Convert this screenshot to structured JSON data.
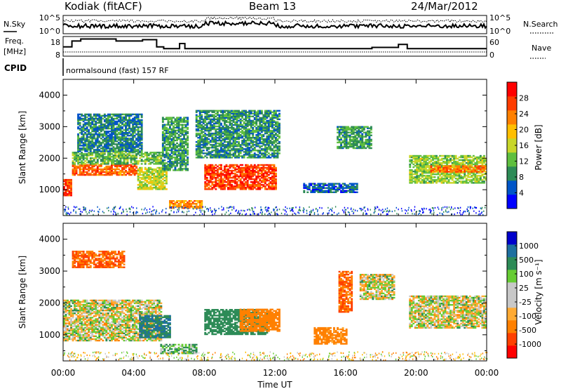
{
  "header": {
    "station": "Kodiak (fitACF)",
    "beam": "Beam 13",
    "date": "24/Mar/2012"
  },
  "noise_panel": {
    "left_label": "N.Sky",
    "right_label": "N.Search",
    "left_ticks": [
      "10^5",
      "10^0"
    ],
    "right_ticks": [
      "10^5",
      "10^0"
    ]
  },
  "freq_panel": {
    "left_label_line1": "Freq.",
    "left_label_line2": "[MHz]",
    "right_label": "Nave",
    "left_ticks": [
      "18",
      "8"
    ],
    "right_ticks": [
      "60",
      "0"
    ],
    "freq_steps": [
      {
        "t": 0.0,
        "v": 13.5
      },
      {
        "t": 0.5,
        "v": 17
      },
      {
        "t": 1.0,
        "v": 18.2
      },
      {
        "t": 3.0,
        "v": 17
      },
      {
        "t": 4.5,
        "v": 17.8
      },
      {
        "t": 5.3,
        "v": 13.5
      },
      {
        "t": 5.7,
        "v": 12.5
      },
      {
        "t": 6.2,
        "v": 12.5
      },
      {
        "t": 6.6,
        "v": 15.5
      },
      {
        "t": 6.9,
        "v": 12.5
      },
      {
        "t": 7.6,
        "v": 12.5
      },
      {
        "t": 8.8,
        "v": 12.5
      },
      {
        "t": 11.2,
        "v": 12.5
      },
      {
        "t": 12.8,
        "v": 12.5
      },
      {
        "t": 14.5,
        "v": 12.5
      },
      {
        "t": 17.5,
        "v": 13.2
      },
      {
        "t": 19.0,
        "v": 15.0
      },
      {
        "t": 19.5,
        "v": 12.5
      },
      {
        "t": 24.0,
        "v": 12.5
      }
    ]
  },
  "cpid_panel": {
    "label": "CPID",
    "program": "normalsound (fast) 157 RF"
  },
  "power_panel": {
    "ylabel": "Slant Range [km]",
    "colorbar_label": "Power [dB]",
    "colorbar_ticks": [
      "28",
      "24",
      "20",
      "16",
      "12",
      "8",
      "4"
    ]
  },
  "velocity_panel": {
    "ylabel": "Slant Range [km]",
    "colorbar_label": "Velocity [m s⁻¹]",
    "colorbar_ticks": [
      "1000",
      "500",
      "100",
      "25",
      "-25",
      "-100",
      "-500",
      "-1000"
    ]
  },
  "xaxis": {
    "label": "Time UT",
    "ticks": [
      "00:00",
      "04:00",
      "08:00",
      "12:00",
      "16:00",
      "20:00",
      "00:00"
    ]
  },
  "colors": {
    "power_scale": [
      "#0000ff",
      "#0055c8",
      "#2d8b57",
      "#5fbf3f",
      "#c8d62a",
      "#ffbf00",
      "#ff8000",
      "#ff3c00",
      "#ff0000"
    ],
    "velocity_scale": [
      "#ff0000",
      "#ff4000",
      "#ff8000",
      "#ffaa33",
      "#c8c8c8",
      "#c8c8c8",
      "#66cc33",
      "#2d8b57",
      "#1e6fa0",
      "#0000cc"
    ]
  },
  "chart_data": {
    "type": "heatmap",
    "title": "Kodiak (fitACF)",
    "xlabel": "Time UT",
    "ylabel": "Slant Range [km]",
    "xlim": [
      0,
      24
    ],
    "ylim": [
      180,
      4500
    ],
    "y_ticks": [
      1000,
      2000,
      3000,
      4000
    ],
    "power_features": [
      {
        "t0": 0.0,
        "t1": 0.5,
        "r0": 800,
        "r1": 1300,
        "level": 27
      },
      {
        "t0": 0.5,
        "t1": 4.2,
        "r0": 1450,
        "r1": 1800,
        "level": 25
      },
      {
        "t0": 0.5,
        "t1": 5.5,
        "r0": 1800,
        "r1": 2200,
        "level": 12
      },
      {
        "t0": 0.8,
        "t1": 4.5,
        "r0": 2200,
        "r1": 3400,
        "level": 8
      },
      {
        "t0": 4.2,
        "t1": 5.8,
        "r0": 1000,
        "r1": 1700,
        "level": 16
      },
      {
        "t0": 5.6,
        "t1": 7.0,
        "r0": 1600,
        "r1": 3300,
        "level": 10
      },
      {
        "t0": 6.0,
        "t1": 7.8,
        "r0": 400,
        "r1": 650,
        "level": 22
      },
      {
        "t0": 8.0,
        "t1": 12.0,
        "r0": 1000,
        "r1": 1800,
        "level": 27
      },
      {
        "t0": 7.5,
        "t1": 12.2,
        "r0": 2000,
        "r1": 3500,
        "level": 9
      },
      {
        "t0": 13.6,
        "t1": 16.6,
        "r0": 900,
        "r1": 1200,
        "level": 6
      },
      {
        "t0": 15.5,
        "t1": 17.5,
        "r0": 2300,
        "r1": 3000,
        "level": 10
      },
      {
        "t0": 19.6,
        "t1": 24.0,
        "r0": 1200,
        "r1": 2100,
        "level": 14
      },
      {
        "t0": 20.8,
        "t1": 24.0,
        "r0": 1550,
        "r1": 1750,
        "level": 24
      }
    ],
    "velocity_features": [
      {
        "t0": 0.0,
        "t1": 5.5,
        "r0": 800,
        "r1": 2100,
        "value": 0
      },
      {
        "t0": 0.5,
        "t1": 3.5,
        "r0": 3100,
        "r1": 3600,
        "value": -500
      },
      {
        "t0": 4.3,
        "t1": 6.0,
        "r0": 900,
        "r1": 1600,
        "value": 500
      },
      {
        "t0": 5.5,
        "t1": 7.5,
        "r0": 400,
        "r1": 700,
        "value": 100
      },
      {
        "t0": 8.0,
        "t1": 11.5,
        "r0": 1000,
        "r1": 1800,
        "value": 300
      },
      {
        "t0": 10.0,
        "t1": 12.2,
        "r0": 1100,
        "r1": 1800,
        "value": -300
      },
      {
        "t0": 14.2,
        "t1": 16.0,
        "r0": 700,
        "r1": 1200,
        "value": -200
      },
      {
        "t0": 15.6,
        "t1": 16.4,
        "r0": 1700,
        "r1": 3000,
        "value": -500
      },
      {
        "t0": 16.8,
        "t1": 18.8,
        "r0": 2100,
        "r1": 2900,
        "value": 0
      },
      {
        "t0": 19.6,
        "t1": 24.0,
        "r0": 1200,
        "r1": 2200,
        "value": 0
      }
    ]
  }
}
